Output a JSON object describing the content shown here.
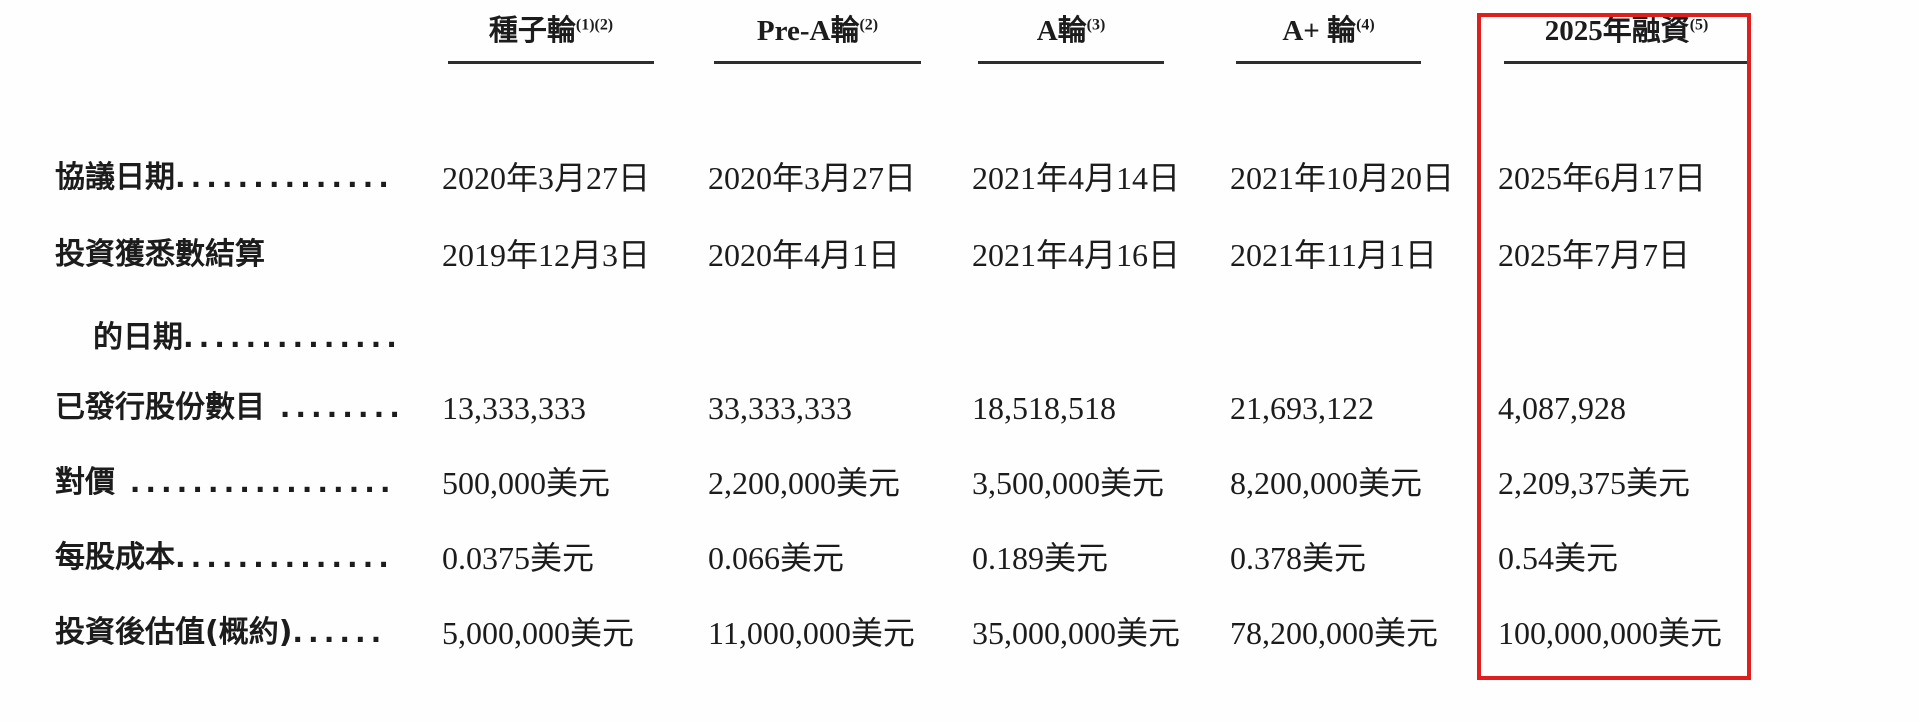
{
  "document": {
    "type": "prospectus-financing-table",
    "highlight_color": "#e01e1e",
    "text_color": "#1c1c1c"
  },
  "table": {
    "columns": [
      {
        "label": "種子輪",
        "sup": "(1)(2)"
      },
      {
        "label": "Pre-A輪",
        "sup": "(2)"
      },
      {
        "label": "A輪",
        "sup": "(3)"
      },
      {
        "label": "A+ 輪",
        "sup": "(4)"
      },
      {
        "label": "2025年融資",
        "sup": "(5)"
      }
    ],
    "rows": [
      {
        "label": "協議日期",
        "dots": "..............",
        "cells": [
          "2020年3月27日",
          "2020年3月27日",
          "2021年4月14日",
          "2021年10月20日",
          "2025年6月17日"
        ]
      },
      {
        "label": "投資獲悉數結算",
        "dots": "",
        "cells": [
          "2019年12月3日",
          "2020年4月1日",
          "2021年4月16日",
          "2021年11月1日",
          "2025年7月7日"
        ]
      },
      {
        "label": "的日期",
        "dots": "..............",
        "cells": [
          "",
          "",
          "",
          "",
          ""
        ]
      },
      {
        "label": "已發行股份數目",
        "dots": " ........",
        "cells": [
          "13,333,333",
          "33,333,333",
          "18,518,518",
          "21,693,122",
          "4,087,928"
        ]
      },
      {
        "label": "對價",
        "dots": " .................",
        "cells": [
          "500,000美元",
          "2,200,000美元",
          "3,500,000美元",
          "8,200,000美元",
          "2,209,375美元"
        ]
      },
      {
        "label": "每股成本",
        "dots": "..............",
        "cells": [
          "0.0375美元",
          "0.066美元",
          "0.189美元",
          "0.378美元",
          "0.54美元"
        ]
      },
      {
        "label": "投資後估值(概約)",
        "dots": "......",
        "cells": [
          "5,000,000美元",
          "11,000,000美元",
          "35,000,000美元",
          "78,200,000美元",
          "100,000,000美元"
        ]
      }
    ]
  }
}
